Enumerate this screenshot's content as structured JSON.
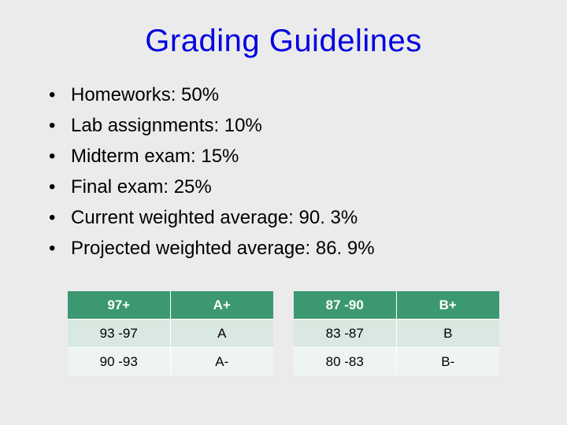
{
  "title": "Grading Guidelines",
  "title_color": "#0000e0",
  "title_fontsize": 40,
  "background_color": "#ebebeb",
  "bullets": {
    "fontsize": 24,
    "color": "#000000",
    "items": [
      "Homeworks: 50%",
      "Lab assignments: 10%",
      "Midterm exam: 15%",
      "Final exam: 25%",
      "Current weighted average: 90. 3%",
      "Projected weighted average: 86. 9%"
    ]
  },
  "grade_tables": {
    "header_bg": "#3c9870",
    "header_fg": "#ffffff",
    "row_alt_a_bg": "#d9e8e0",
    "row_alt_b_bg": "#eef5f1",
    "cell_fontsize": 17,
    "left": {
      "rows": [
        {
          "range": "97+",
          "grade": "A+"
        },
        {
          "range": "93 -97",
          "grade": "A"
        },
        {
          "range": "90 -93",
          "grade": "A-"
        }
      ]
    },
    "right": {
      "rows": [
        {
          "range": "87 -90",
          "grade": "B+"
        },
        {
          "range": "83 -87",
          "grade": "B"
        },
        {
          "range": "80 -83",
          "grade": "B-"
        }
      ]
    }
  }
}
